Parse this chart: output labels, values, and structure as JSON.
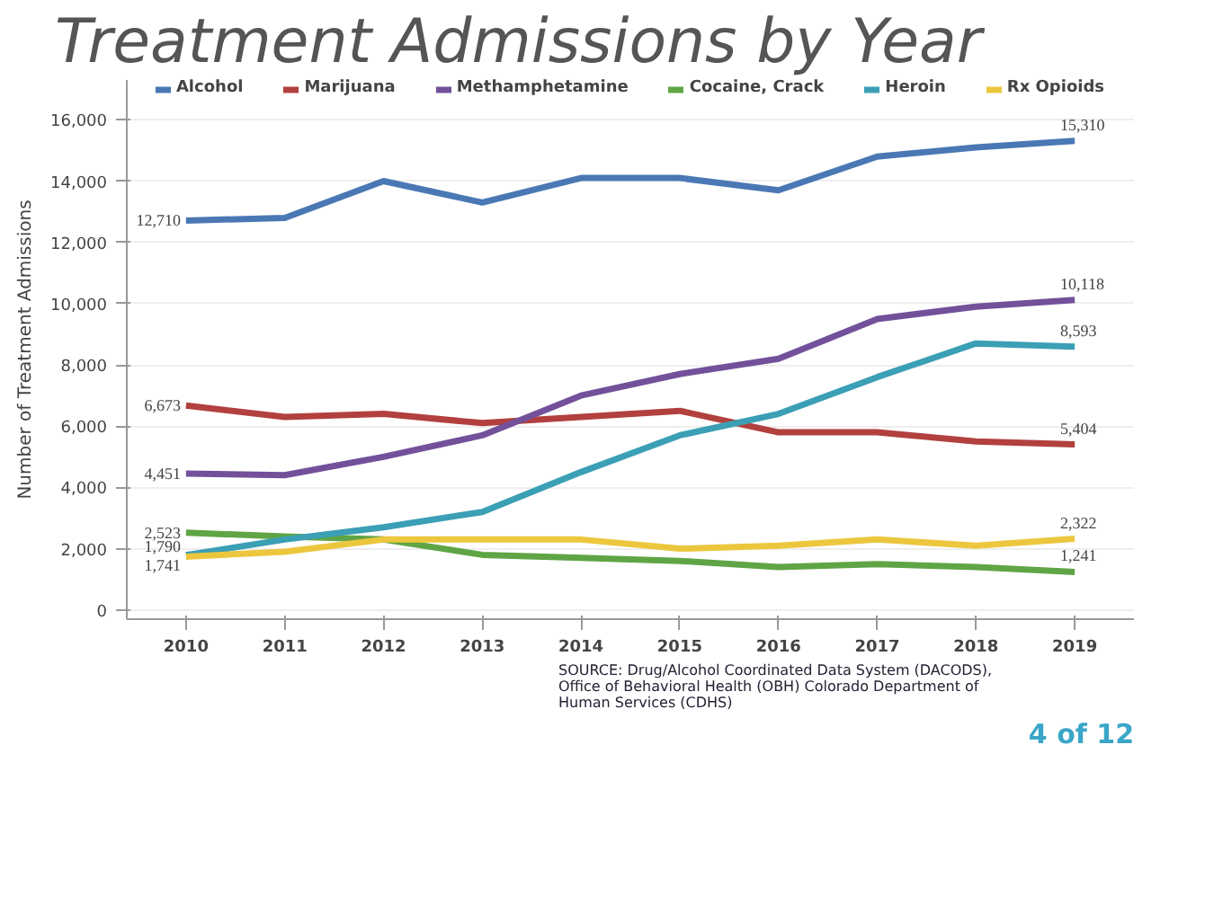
{
  "chart_data": {
    "type": "line",
    "title": "Treatment Admissions by Year",
    "ylabel": "Number of Treatment Admissions",
    "categories": [
      "2010",
      "2011",
      "2012",
      "2013",
      "2014",
      "2015",
      "2016",
      "2017",
      "2018",
      "2019"
    ],
    "series": [
      {
        "name": "Alcohol",
        "color": "#4a78b4",
        "values": [
          12710,
          12800,
          14000,
          13300,
          14100,
          14100,
          13700,
          14800,
          15100,
          15310
        ],
        "value_labels": [
          "12,710",
          null,
          null,
          null,
          null,
          null,
          null,
          null,
          null,
          "15,310"
        ]
      },
      {
        "name": "Marijuana",
        "color": "#b2403e",
        "values": [
          6673,
          6300,
          6400,
          6100,
          6300,
          6500,
          5800,
          5800,
          5500,
          5404
        ],
        "value_labels": [
          "6,673",
          null,
          null,
          null,
          null,
          null,
          null,
          null,
          null,
          "5,404"
        ]
      },
      {
        "name": "Methamphetamine",
        "color": "#72519a",
        "values": [
          4451,
          4400,
          5000,
          5700,
          7000,
          7700,
          8200,
          9500,
          9900,
          10118
        ],
        "value_labels": [
          "4,451",
          null,
          null,
          null,
          null,
          null,
          null,
          null,
          null,
          "10,118"
        ]
      },
      {
        "name": "Cocaine, Crack",
        "color": "#5fa545",
        "values": [
          2523,
          2400,
          2300,
          1800,
          1700,
          1600,
          1400,
          1500,
          1400,
          1241
        ],
        "value_labels": [
          "2,523",
          null,
          null,
          null,
          null,
          null,
          null,
          null,
          null,
          "1,241"
        ]
      },
      {
        "name": "Heroin",
        "color": "#3b9fb5",
        "values": [
          1790,
          2300,
          2700,
          3200,
          4500,
          5700,
          6400,
          7600,
          8700,
          8593
        ],
        "value_labels": [
          "1,790",
          null,
          null,
          null,
          null,
          null,
          null,
          null,
          null,
          "8,593"
        ]
      },
      {
        "name": "Rx Opioids",
        "color": "#ecc73e",
        "values": [
          1741,
          1900,
          2300,
          2300,
          2300,
          2000,
          2100,
          2300,
          2100,
          2322
        ],
        "value_labels": [
          "1,741",
          null,
          null,
          null,
          null,
          null,
          null,
          null,
          null,
          "2,322"
        ]
      }
    ],
    "ylim": [
      -300,
      17300
    ],
    "yticks": [
      0,
      {
        "value": 2000,
        "label": "2,000"
      },
      {
        "value": 4000,
        "label": "4,000"
      },
      {
        "value": 6000,
        "label": "6,000"
      },
      {
        "value": 8000,
        "label": "8,000"
      },
      {
        "value": 10000,
        "label": "10,000"
      },
      {
        "value": 12000,
        "label": "12,000"
      },
      {
        "value": 14000,
        "label": "14,000"
      },
      {
        "value": 16000,
        "label": "16,000"
      }
    ],
    "grid": "y",
    "legend": "top",
    "marker": "none",
    "line_style": "solid",
    "annotations": [
      "SOURCE: Drug/Alcohol Coordinated Data System (DACODS),\nOffice of Behavioral Health (OBH) Colorado Department of\nHuman Services (CDHS)",
      "4 of 12"
    ]
  }
}
